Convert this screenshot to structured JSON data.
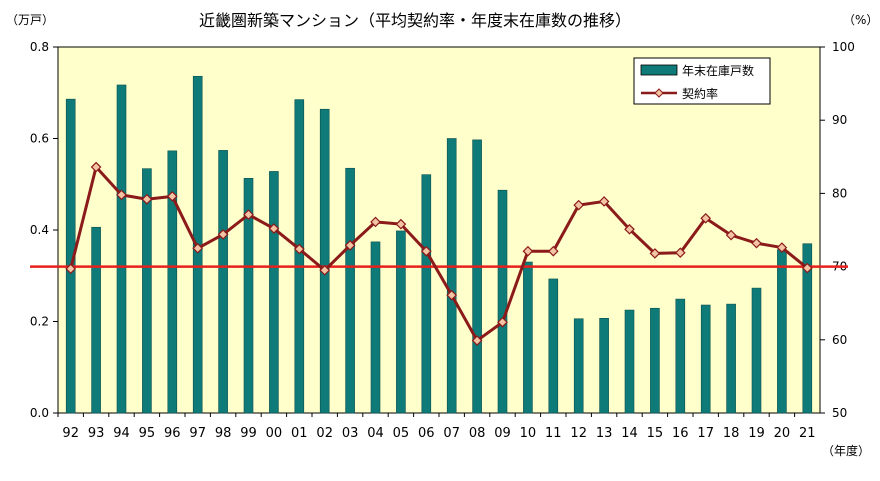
{
  "chart_data": {
    "type": "bar",
    "title": "近畿圏新築マンション（平均契約率・年度末在庫数の推移）",
    "y_left_unit": "（万戸）",
    "y_right_unit": "（%）",
    "x_unit": "（年度）",
    "ylim_left": [
      0,
      0.8
    ],
    "ylim_right": [
      50,
      100
    ],
    "yticks_left": [
      "0.0",
      "0.2",
      "0.4",
      "0.6",
      "0.8"
    ],
    "yticks_right": [
      "50",
      "60",
      "70",
      "80",
      "90",
      "100"
    ],
    "categories": [
      "92",
      "93",
      "94",
      "95",
      "96",
      "97",
      "98",
      "99",
      "00",
      "01",
      "02",
      "03",
      "04",
      "05",
      "06",
      "07",
      "08",
      "09",
      "10",
      "11",
      "12",
      "13",
      "14",
      "15",
      "16",
      "17",
      "18",
      "19",
      "20",
      "21"
    ],
    "series": [
      {
        "name": "年末在庫戸数",
        "kind": "bar",
        "axis": "left",
        "color": "#0f7b78",
        "values": [
          0.686,
          0.406,
          0.717,
          0.534,
          0.573,
          0.736,
          0.574,
          0.513,
          0.528,
          0.685,
          0.664,
          0.535,
          0.374,
          0.398,
          0.521,
          0.6,
          0.597,
          0.487,
          0.33,
          0.293,
          0.206,
          0.207,
          0.225,
          0.229,
          0.249,
          0.236,
          0.238,
          0.273,
          0.357,
          0.37
        ]
      },
      {
        "name": "契約率",
        "kind": "line",
        "axis": "right",
        "color": "#8b1a1a",
        "marker_fill": "#f3c4a4",
        "values": [
          69.7,
          83.6,
          79.8,
          79.2,
          79.6,
          72.5,
          74.4,
          77.1,
          75.2,
          72.4,
          69.5,
          72.9,
          76.1,
          75.8,
          72.1,
          66.1,
          59.9,
          62.4,
          72.1,
          72.1,
          78.4,
          78.9,
          75.1,
          71.8,
          71.9,
          76.6,
          74.3,
          73.2,
          72.6,
          69.8
        ]
      }
    ],
    "reference_line": {
      "axis": "right",
      "value": 70,
      "color": "#e8201d"
    },
    "plot_background": "#ffffcc",
    "legend": "top-right"
  }
}
